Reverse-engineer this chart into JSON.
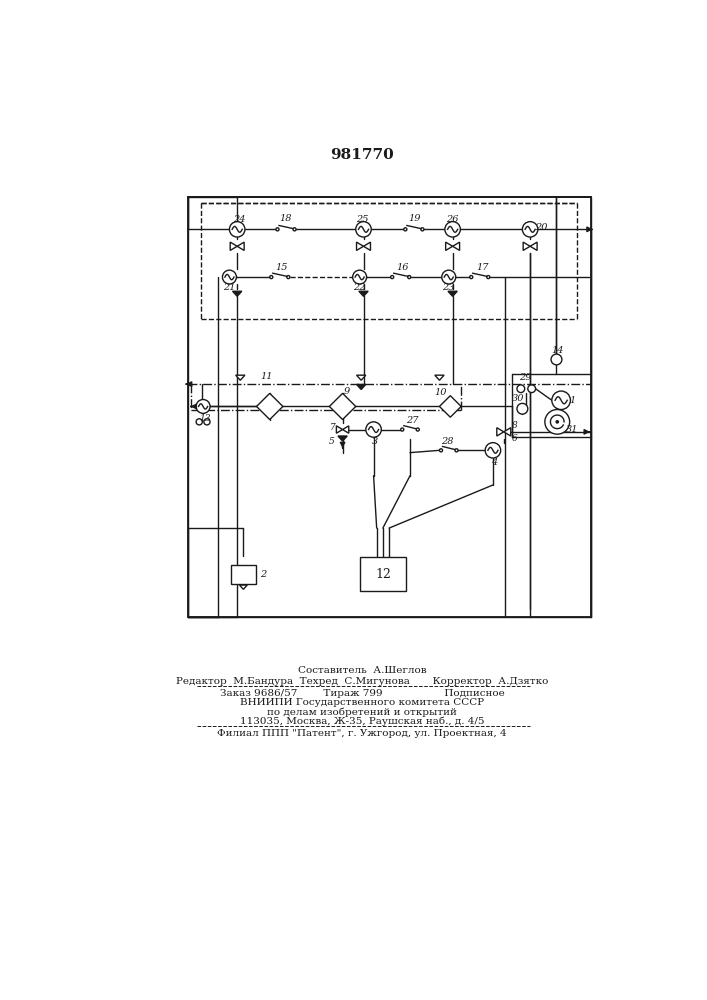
{
  "title": "981770",
  "bg_color": "#ffffff",
  "line_color": "#1a1a1a",
  "footer_lines": [
    "         Составитель  А.Шеглов",
    "Редактор  М.Бандура  Техред  С.Мигунова       Корректор  А.Дзятко",
    "Заказ 9686/57        Тираж 799                   Подписное",
    "      ВНИИПИ Государственного комитета СССР",
    "           по делам изобретений и открытий",
    "      113035, Москва, Ж-35, Раушская наб., д. 4/5",
    "  Филиал ППП \"Патент\", г. Ужгород, ул. Проектная, 4"
  ]
}
